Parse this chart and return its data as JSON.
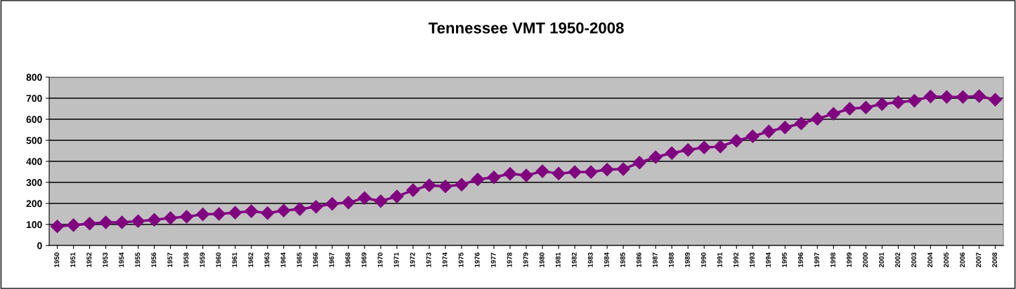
{
  "chart_data": {
    "type": "line",
    "title": "Tennessee VMT 1950-2008",
    "categories": [
      "1950",
      "1951",
      "1952",
      "1953",
      "1954",
      "1955",
      "1956",
      "1957",
      "1958",
      "1959",
      "1960",
      "1961",
      "1962",
      "1963",
      "1964",
      "1965",
      "1966",
      "1967",
      "1968",
      "1969",
      "1970",
      "1971",
      "1972",
      "1973",
      "1974",
      "1975",
      "1976",
      "1977",
      "1978",
      "1979",
      "1980",
      "1981",
      "1982",
      "1983",
      "1984",
      "1985",
      "1986",
      "1987",
      "1988",
      "1989",
      "1990",
      "1991",
      "1992",
      "1993",
      "1994",
      "1995",
      "1996",
      "1997",
      "1998",
      "1999",
      "2000",
      "2001",
      "2002",
      "2003",
      "2004",
      "2005",
      "2006",
      "2007",
      "2008"
    ],
    "series": [
      {
        "color": "#800080",
        "values": [
          91,
          97,
          104,
          110,
          110,
          116,
          122,
          131,
          137,
          148,
          150,
          156,
          163,
          154,
          166,
          173,
          184,
          198,
          204,
          226,
          211,
          233,
          263,
          286,
          281,
          289,
          314,
          324,
          341,
          333,
          353,
          342,
          349,
          349,
          361,
          363,
          394,
          420,
          439,
          454,
          466,
          470,
          498,
          519,
          542,
          561,
          580,
          602,
          626,
          650,
          656,
          672,
          681,
          688,
          708,
          706,
          706,
          710,
          693
        ]
      }
    ],
    "ylim": [
      0,
      800
    ],
    "yticks": [
      0,
      100,
      200,
      300,
      400,
      500,
      600,
      700,
      800
    ],
    "grid": "y",
    "marker": "diamond",
    "line_style": "solid"
  }
}
